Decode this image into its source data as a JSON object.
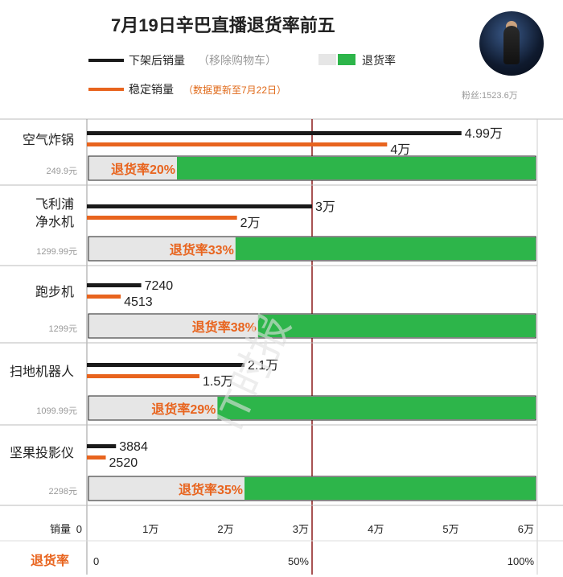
{
  "header": {
    "title": "7月19日辛巴直播退货率前五",
    "fans": "粉丝:1523.6万"
  },
  "legend": {
    "sales_after": "下架后销量",
    "sales_after_note": "（移除购物车）",
    "stable_sales": "稳定销量",
    "stable_sales_note": "（数据更新至7月22日）",
    "return_rate": "退货率"
  },
  "colors": {
    "sales_after": "#1a1a1a",
    "stable_sales": "#e8641e",
    "return_rate": "#2db54a",
    "return_rate_bg": "#e6e6e6",
    "return_text": "#e8641e",
    "divider": "#8b1a1a"
  },
  "chart_data": {
    "type": "bar",
    "categories": [
      "空气炸锅",
      "飞利浦\n净水机",
      "跑步机",
      "扫地机器人",
      "坚果投影仪"
    ],
    "prices": [
      "249.9元",
      "1299.99元",
      "1299元",
      "1099.99元",
      "2298元"
    ],
    "series": [
      {
        "name": "下架后销量",
        "values": [
          49900,
          30000,
          7240,
          21000,
          3884
        ],
        "labels": [
          "4.99万",
          "3万",
          "7240",
          "2.1万",
          "3884"
        ]
      },
      {
        "name": "稳定销量",
        "values": [
          40000,
          20000,
          4513,
          15000,
          2520
        ],
        "labels": [
          "4万",
          "2万",
          "4513",
          "1.5万",
          "2520"
        ]
      },
      {
        "name": "退货率",
        "values": [
          20,
          33,
          38,
          29,
          35
        ],
        "labels": [
          "退货率20%",
          "退货率33%",
          "退货率38%",
          "退货率29%",
          "退货率35%"
        ]
      }
    ],
    "sales_axis": {
      "label": "销量",
      "ticks": [
        "0",
        "1万",
        "2万",
        "3万",
        "4万",
        "5万",
        "6万"
      ],
      "tick_values": [
        0,
        10000,
        20000,
        30000,
        40000,
        50000,
        60000
      ],
      "range": [
        0,
        60000
      ]
    },
    "rate_axis": {
      "label": "退货率",
      "ticks": [
        "0",
        "50%",
        "100%"
      ],
      "tick_values": [
        0,
        50,
        100
      ],
      "range": [
        0,
        100
      ]
    },
    "watermark": "IT时报"
  }
}
